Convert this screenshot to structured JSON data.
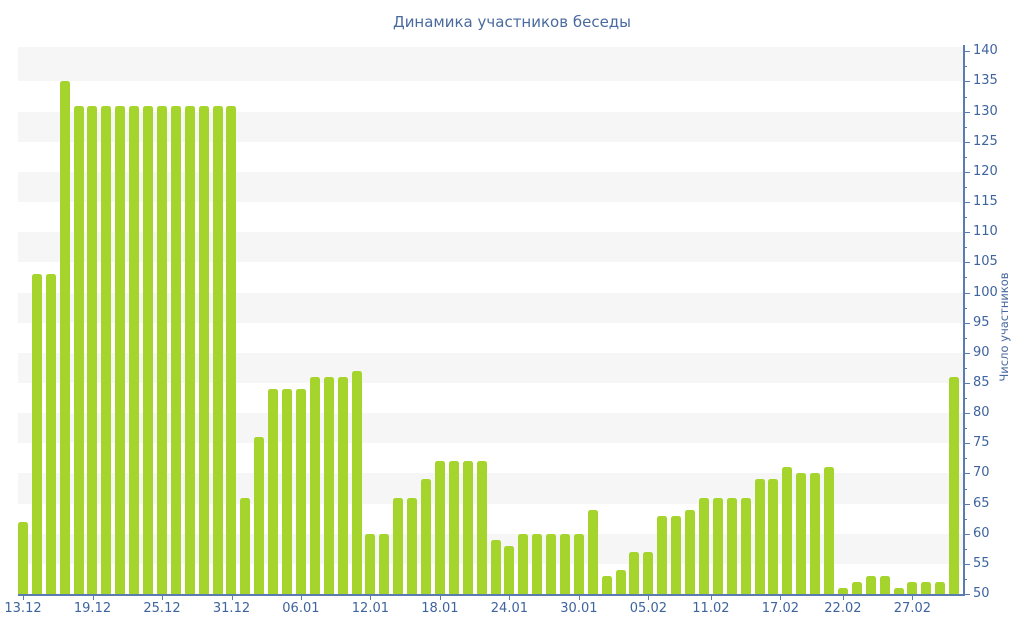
{
  "title": "Динамика участников беседы",
  "colors": {
    "bar": "#a5d52d",
    "band": "#f6f6f6",
    "background": "#ffffff",
    "axis_line": "#5a7cb0",
    "tick_label": "#3e649e",
    "title": "#4a6a9f"
  },
  "y_axis": {
    "label": "Число участников",
    "tick_labels": [
      "50",
      "55",
      "60",
      "65",
      "70",
      "75",
      "80",
      "85",
      "90",
      "95",
      "100",
      "105",
      "110",
      "115",
      "120",
      "125",
      "130",
      "135",
      "140"
    ]
  },
  "chart_data": {
    "type": "bar",
    "title": "Динамика участников беседы",
    "xlabel": "",
    "ylabel": "Число участников",
    "ylim": [
      50,
      140
    ],
    "y_tick_step": 5,
    "y_minor_tick_step": 2.5,
    "grid": "horizontal striped bands, alternating gray/white every 5 units",
    "legend": "none",
    "bar_color": "#a5d52d",
    "values": [
      62,
      103,
      103,
      135,
      131,
      131,
      131,
      131,
      131,
      131,
      131,
      131,
      131,
      131,
      131,
      131,
      66,
      76,
      84,
      84,
      84,
      86,
      86,
      86,
      87,
      60,
      60,
      66,
      66,
      69,
      72,
      72,
      72,
      72,
      59,
      58,
      60,
      60,
      60,
      60,
      60,
      64,
      53,
      54,
      57,
      57,
      63,
      63,
      64,
      66,
      66,
      66,
      66,
      69,
      69,
      71,
      70,
      70,
      71,
      51,
      52,
      53,
      53,
      51,
      52,
      52,
      52,
      86
    ],
    "x_ticks": [
      {
        "label": "13.12",
        "at": 0
      },
      {
        "label": "19.12",
        "at": 5
      },
      {
        "label": "25.12",
        "at": 10
      },
      {
        "label": "31.12",
        "at": 15
      },
      {
        "label": "06.01",
        "at": 20
      },
      {
        "label": "12.01",
        "at": 25
      },
      {
        "label": "18.01",
        "at": 30
      },
      {
        "label": "24.01",
        "at": 35
      },
      {
        "label": "30.01",
        "at": 40
      },
      {
        "label": "05.02",
        "at": 45
      },
      {
        "label": "11.02",
        "at": 49.5
      },
      {
        "label": "17.02",
        "at": 54.5
      },
      {
        "label": "22.02",
        "at": 59
      },
      {
        "label": "27.02",
        "at": 64
      }
    ]
  }
}
